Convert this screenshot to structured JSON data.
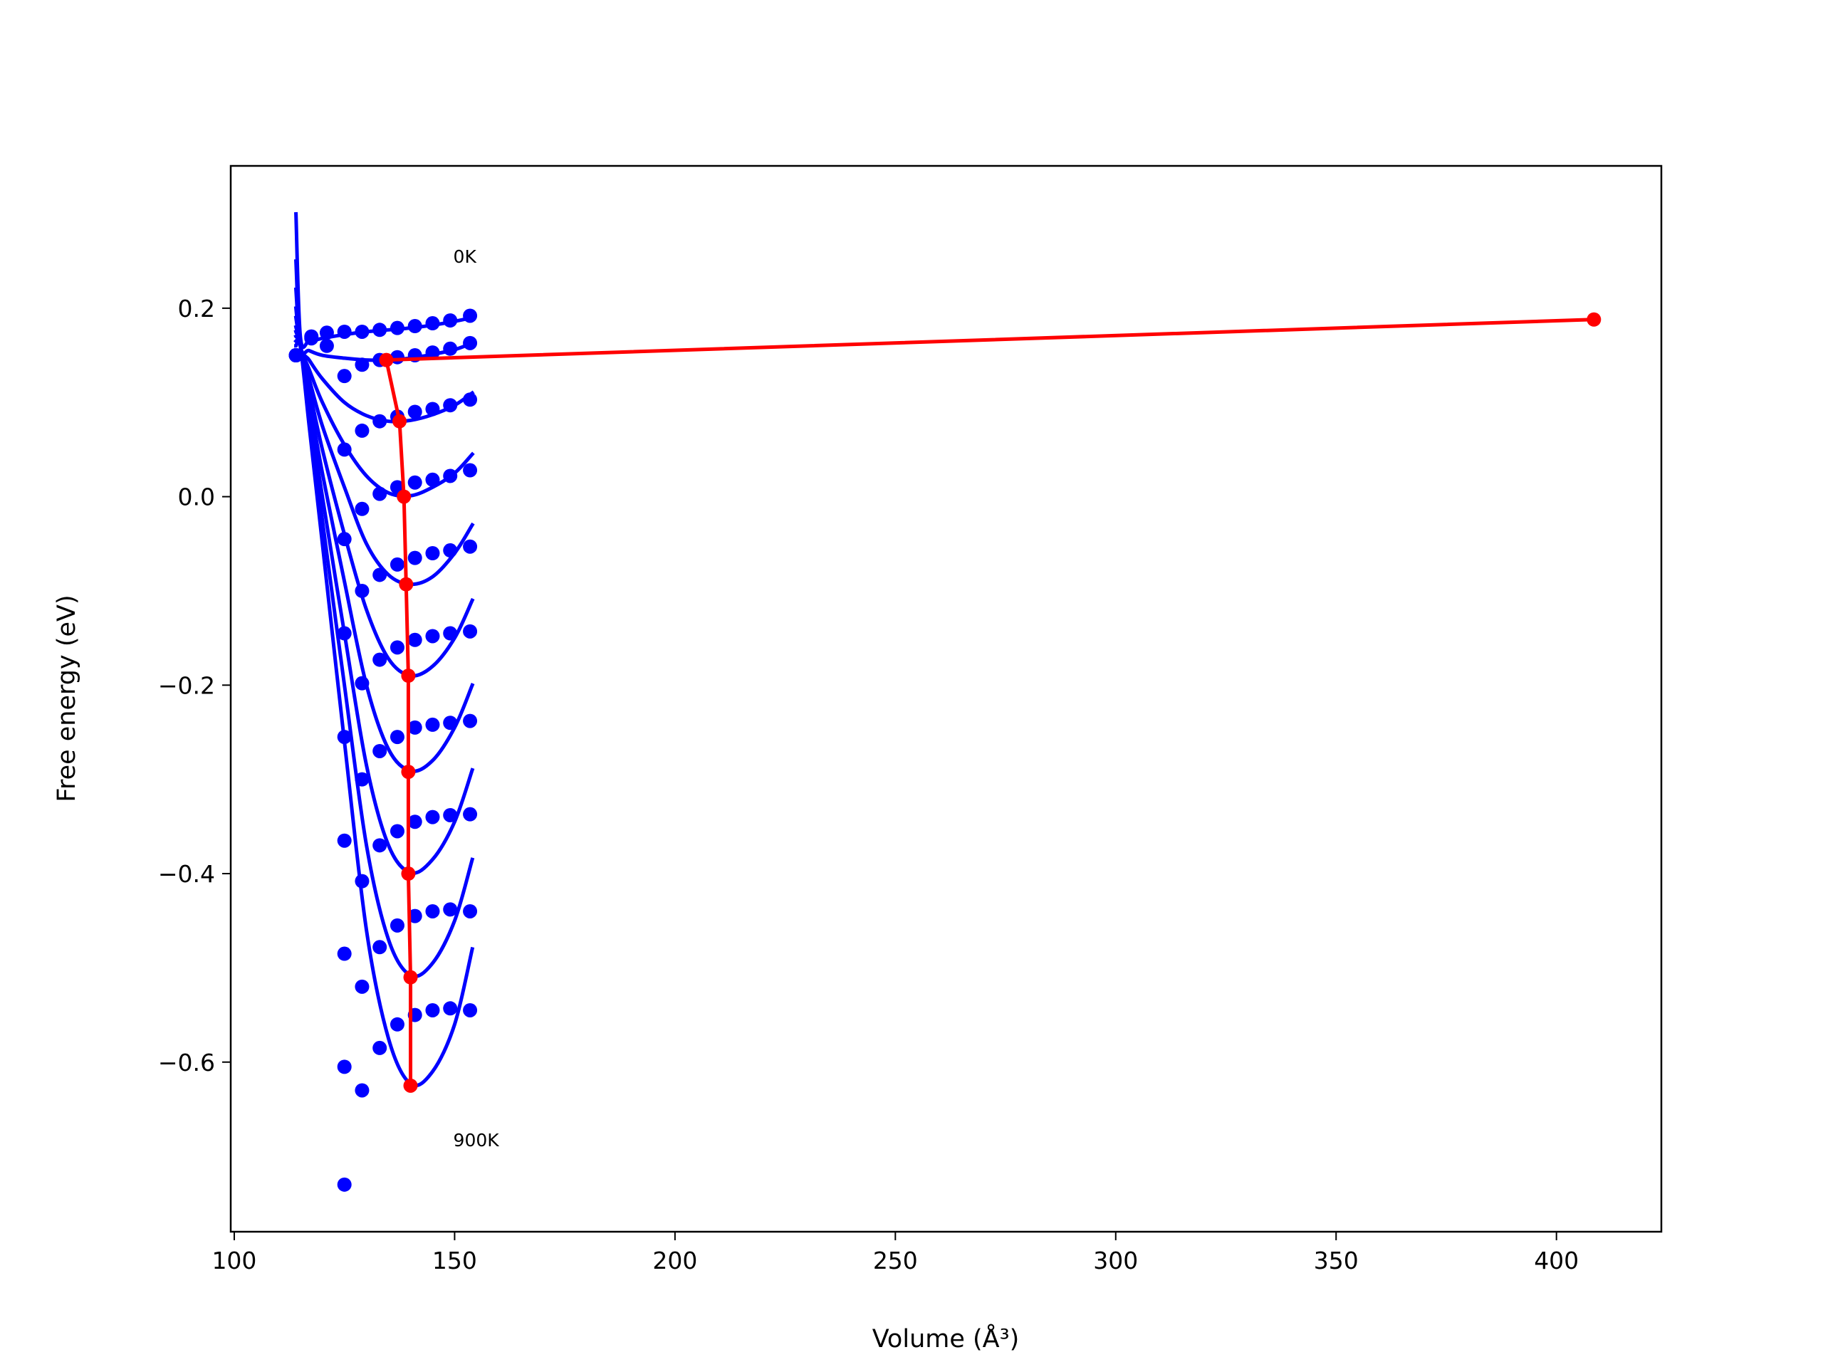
{
  "chart_data": {
    "type": "line",
    "xlabel": "Volume (Å³)",
    "ylabel": "Free energy (eV)",
    "xlim": [
      99.2,
      423.8
    ],
    "ylim": [
      -0.78,
      0.351
    ],
    "xticks": [
      100,
      150,
      200,
      250,
      300,
      350,
      400
    ],
    "yticks": [
      {
        "value": -0.6,
        "label": "−0.6"
      },
      {
        "value": -0.4,
        "label": "−0.4"
      },
      {
        "value": -0.2,
        "label": "−0.2"
      },
      {
        "value": 0,
        "label": "0.0"
      },
      0.2
    ],
    "grid": false,
    "annotations": [
      {
        "text": "0K",
        "x": 149.7,
        "y": 0.255
      },
      {
        "text": "900K",
        "x": 149.7,
        "y": -0.6825
      }
    ],
    "series": [
      {
        "style": "line",
        "color": "#0000ff",
        "x": [
          114,
          115,
          117,
          120,
          125,
          130,
          135,
          140,
          145,
          150,
          154
        ],
        "values": [
          0.3,
          0.17,
          0.165,
          0.168,
          0.172,
          0.175,
          0.177,
          0.179,
          0.182,
          0.186,
          0.19
        ]
      },
      {
        "style": "line",
        "color": "#0000ff",
        "x": [
          114,
          115,
          117,
          120,
          125,
          130,
          135,
          140,
          145,
          150,
          154
        ],
        "values": [
          0.25,
          0.16,
          0.155,
          0.15,
          0.147,
          0.145,
          0.145,
          0.147,
          0.151,
          0.156,
          0.163
        ]
      },
      {
        "style": "line",
        "color": "#0000ff",
        "x": [
          114,
          115,
          117,
          120,
          125,
          130,
          135,
          140,
          145,
          150,
          154
        ],
        "values": [
          0.22,
          0.16,
          0.145,
          0.125,
          0.1,
          0.086,
          0.08,
          0.081,
          0.087,
          0.097,
          0.11
        ]
      },
      {
        "style": "line",
        "color": "#0000ff",
        "x": [
          114,
          115,
          117,
          120,
          125,
          130,
          135,
          140,
          145,
          150,
          154
        ],
        "values": [
          0.2,
          0.16,
          0.135,
          0.1,
          0.055,
          0.022,
          0.004,
          0.001,
          0.01,
          0.025,
          0.045
        ]
      },
      {
        "style": "line",
        "color": "#0000ff",
        "x": [
          114,
          115,
          117,
          120,
          125,
          130,
          135,
          140,
          145,
          150,
          154
        ],
        "values": [
          0.19,
          0.16,
          0.125,
          0.075,
          0.01,
          -0.05,
          -0.083,
          -0.093,
          -0.085,
          -0.06,
          -0.03
        ]
      },
      {
        "style": "line",
        "color": "#0000ff",
        "x": [
          114,
          115,
          117,
          120,
          125,
          130,
          135,
          140,
          145,
          150,
          154
        ],
        "values": [
          0.18,
          0.16,
          0.115,
          0.05,
          -0.04,
          -0.12,
          -0.172,
          -0.19,
          -0.18,
          -0.15,
          -0.11
        ]
      },
      {
        "style": "line",
        "color": "#0000ff",
        "x": [
          114,
          115,
          117,
          120,
          125,
          130,
          135,
          140,
          145,
          150,
          154
        ],
        "values": [
          0.175,
          0.16,
          0.105,
          0.025,
          -0.09,
          -0.2,
          -0.268,
          -0.291,
          -0.28,
          -0.245,
          -0.2
        ]
      },
      {
        "style": "line",
        "color": "#0000ff",
        "x": [
          114,
          115,
          117,
          120,
          125,
          130,
          135,
          140,
          145,
          150,
          154
        ],
        "values": [
          0.17,
          0.16,
          0.095,
          0.0,
          -0.145,
          -0.285,
          -0.37,
          -0.399,
          -0.385,
          -0.345,
          -0.29
        ]
      },
      {
        "style": "line",
        "color": "#0000ff",
        "x": [
          114,
          115,
          117,
          120,
          125,
          130,
          135,
          140,
          145,
          150,
          154
        ],
        "values": [
          0.165,
          0.16,
          0.085,
          -0.025,
          -0.2,
          -0.37,
          -0.47,
          -0.508,
          -0.495,
          -0.45,
          -0.385
        ]
      },
      {
        "style": "line",
        "color": "#0000ff",
        "x": [
          114,
          115,
          117,
          120,
          125,
          130,
          135,
          140,
          145,
          150,
          154
        ],
        "values": [
          0.16,
          0.16,
          0.075,
          -0.05,
          -0.26,
          -0.46,
          -0.575,
          -0.623,
          -0.61,
          -0.56,
          -0.48
        ]
      },
      {
        "style": "markers",
        "color": "#0000ff",
        "x": [
          114,
          117.5,
          121,
          125,
          129,
          133,
          137,
          141,
          145,
          149,
          153.5
        ],
        "values": [
          0.15,
          0.17,
          0.174,
          0.175,
          0.175,
          0.177,
          0.179,
          0.181,
          0.184,
          0.187,
          0.192
        ]
      },
      {
        "style": "markers",
        "color": "#0000ff",
        "x": [
          114,
          117.5,
          121,
          125,
          129,
          133,
          137,
          141,
          145,
          149,
          153.5
        ],
        "values": [
          0.15,
          0.168,
          0.16,
          0.128,
          0.14,
          0.145,
          0.148,
          0.15,
          0.153,
          0.157,
          0.163
        ]
      },
      {
        "style": "markers",
        "color": "#0000ff",
        "x": [
          114,
          117.5,
          121,
          125,
          129,
          133,
          137,
          141,
          145,
          149,
          153.5
        ],
        "values": [
          0.15,
          null,
          null,
          0.05,
          0.07,
          0.08,
          0.085,
          0.09,
          0.093,
          0.097,
          0.103
        ]
      },
      {
        "style": "markers",
        "color": "#0000ff",
        "x": [
          114,
          117.5,
          121,
          125,
          129,
          133,
          137,
          141,
          145,
          149,
          153.5
        ],
        "values": [
          0.15,
          null,
          null,
          -0.045,
          -0.013,
          0.003,
          0.01,
          0.015,
          0.018,
          0.022,
          0.028
        ]
      },
      {
        "style": "markers",
        "color": "#0000ff",
        "x": [
          114,
          117.5,
          121,
          125,
          129,
          133,
          137,
          141,
          145,
          149,
          153.5
        ],
        "values": [
          0.15,
          null,
          null,
          -0.145,
          -0.1,
          -0.083,
          -0.072,
          -0.065,
          -0.06,
          -0.057,
          -0.053
        ]
      },
      {
        "style": "markers",
        "color": "#0000ff",
        "x": [
          114,
          117.5,
          121,
          125,
          129,
          133,
          137,
          141,
          145,
          149,
          153.5
        ],
        "values": [
          0.15,
          null,
          null,
          -0.255,
          -0.198,
          -0.173,
          -0.16,
          -0.152,
          -0.148,
          -0.145,
          -0.143
        ]
      },
      {
        "style": "markers",
        "color": "#0000ff",
        "x": [
          114,
          117.5,
          121,
          125,
          129,
          133,
          137,
          141,
          145,
          149,
          153.5
        ],
        "values": [
          0.15,
          null,
          null,
          -0.365,
          -0.3,
          -0.27,
          -0.255,
          -0.245,
          -0.242,
          -0.24,
          -0.238
        ]
      },
      {
        "style": "markers",
        "color": "#0000ff",
        "x": [
          114,
          117.5,
          121,
          125,
          129,
          133,
          137,
          141,
          145,
          149,
          153.5
        ],
        "values": [
          0.15,
          null,
          null,
          -0.485,
          -0.408,
          -0.37,
          -0.355,
          -0.345,
          -0.34,
          -0.338,
          -0.337
        ]
      },
      {
        "style": "markers",
        "color": "#0000ff",
        "x": [
          114,
          117.5,
          121,
          125,
          129,
          133,
          137,
          141,
          145,
          149,
          153.5
        ],
        "values": [
          0.15,
          null,
          null,
          -0.605,
          -0.52,
          -0.478,
          -0.455,
          -0.445,
          -0.44,
          -0.438,
          -0.44
        ]
      },
      {
        "style": "markers",
        "color": "#0000ff",
        "x": [
          114,
          117.5,
          121,
          125,
          129,
          133,
          137,
          141,
          145,
          149,
          153.5
        ],
        "values": [
          0.15,
          null,
          null,
          -0.73,
          -0.63,
          -0.585,
          -0.56,
          -0.55,
          -0.545,
          -0.543,
          -0.545
        ]
      },
      {
        "style": "line+markers",
        "color": "#ff0000",
        "x": [
          408.5,
          134.5,
          137.5,
          138.5,
          139,
          139.5,
          139.5,
          139.5,
          140,
          140
        ],
        "values": [
          0.188,
          0.145,
          0.08,
          0.0,
          -0.093,
          -0.19,
          -0.292,
          -0.4,
          -0.51,
          -0.625
        ]
      }
    ]
  }
}
